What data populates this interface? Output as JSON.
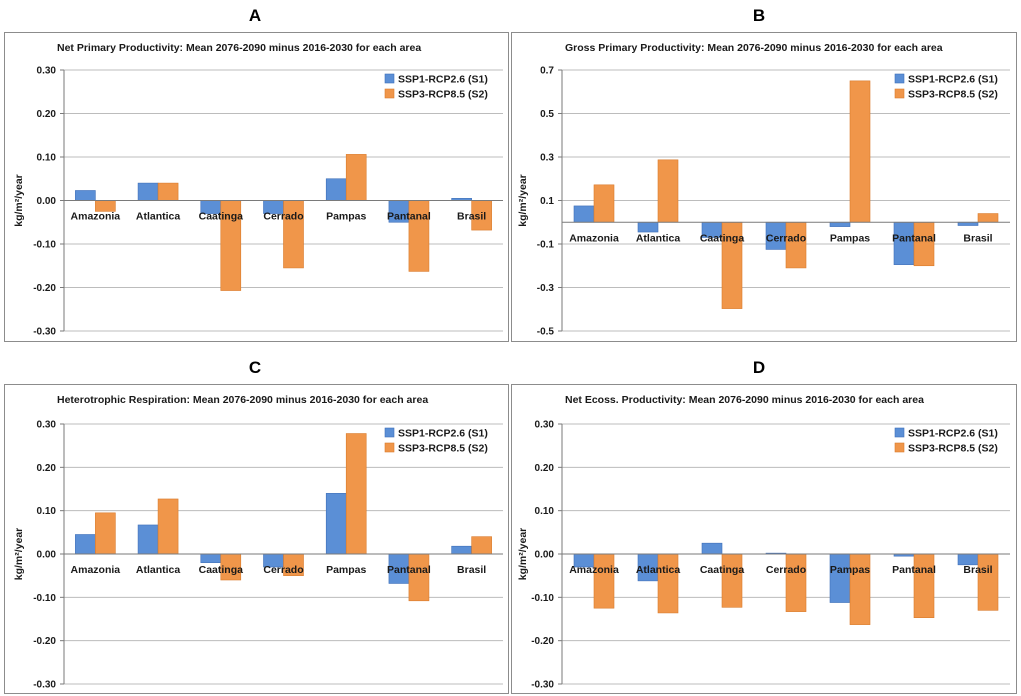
{
  "colors": {
    "s1": "#5b8fd6",
    "s1_dark": "#3f6fb8",
    "s2": "#f0964a",
    "s2_dark": "#d97b2c",
    "grid": "#bcbcbc",
    "axis": "#7a7a7a"
  },
  "legend": [
    "SSP1-RCP2.6 (S1)",
    "SSP3-RCP8.5 (S2)"
  ],
  "chart_data": [
    {
      "panel": "A",
      "type": "bar",
      "title": "Net Primary Productivity: Mean 2076-2090 minus 2016-2030 for each area",
      "ylabel": "kg/m²/year",
      "ylim": [
        -0.3,
        0.3
      ],
      "yticks": [
        0.3,
        0.2,
        0.1,
        0.0,
        -0.1,
        -0.2,
        -0.3
      ],
      "ytick_labels": [
        "0.30",
        "0.20",
        "0.10",
        "0.00",
        "-0.10",
        "-0.20",
        "-0.30"
      ],
      "categories": [
        "Amazonia",
        "Atlantica",
        "Caatinga",
        "Cerrado",
        "Pampas",
        "Pantanal",
        "Brasil"
      ],
      "series": [
        {
          "name": "SSP1-RCP2.6 (S1)",
          "values": [
            0.023,
            0.04,
            -0.03,
            -0.03,
            0.05,
            -0.05,
            0.005
          ]
        },
        {
          "name": "SSP3-RCP8.5 (S2)",
          "values": [
            -0.025,
            0.04,
            -0.207,
            -0.155,
            0.106,
            -0.163,
            -0.068
          ]
        }
      ]
    },
    {
      "panel": "B",
      "type": "bar",
      "title": "Gross Primary Productivity: Mean 2076-2090 minus 2016-2030 for each area",
      "ylabel": "kg/m²/year",
      "ylim": [
        -0.5,
        0.7
      ],
      "yticks": [
        0.7,
        0.5,
        0.3,
        0.1,
        -0.1,
        -0.3,
        -0.5
      ],
      "ytick_labels": [
        "0.7",
        "0.5",
        "0.3",
        "0.1",
        "-0.1",
        "-0.3",
        "-0.5"
      ],
      "categories": [
        "Amazonia",
        "Atlantica",
        "Caatinga",
        "Cerrado",
        "Pampas",
        "Pantanal",
        "Brasil"
      ],
      "series": [
        {
          "name": "SSP1-RCP2.6 (S1)",
          "values": [
            0.075,
            -0.045,
            -0.07,
            -0.125,
            -0.02,
            -0.195,
            -0.015
          ]
        },
        {
          "name": "SSP3-RCP8.5 (S2)",
          "values": [
            0.172,
            0.287,
            -0.397,
            -0.21,
            0.65,
            -0.2,
            0.04
          ]
        }
      ]
    },
    {
      "panel": "C",
      "type": "bar",
      "title": "Heterotrophic Respiration: Mean 2076-2090 minus 2016-2030 for each area",
      "ylabel": "kg/m²/year",
      "ylim": [
        -0.3,
        0.3
      ],
      "yticks": [
        0.3,
        0.2,
        0.1,
        0.0,
        -0.1,
        -0.2,
        -0.3
      ],
      "ytick_labels": [
        "0.30",
        "0.20",
        "0.10",
        "0.00",
        "-0.10",
        "-0.20",
        "-0.30"
      ],
      "categories": [
        "Amazonia",
        "Atlantica",
        "Caatinga",
        "Cerrado",
        "Pampas",
        "Pantanal",
        "Brasil"
      ],
      "series": [
        {
          "name": "SSP1-RCP2.6 (S1)",
          "values": [
            0.045,
            0.067,
            -0.02,
            -0.03,
            0.14,
            -0.068,
            0.018
          ]
        },
        {
          "name": "SSP3-RCP8.5 (S2)",
          "values": [
            0.095,
            0.127,
            -0.06,
            -0.05,
            0.278,
            -0.108,
            0.04
          ]
        }
      ]
    },
    {
      "panel": "D",
      "type": "bar",
      "title": "Net Ecoss. Productivity: Mean 2076-2090 minus 2016-2030 for each area",
      "ylabel": "kg/m²/year",
      "ylim": [
        -0.3,
        0.3
      ],
      "yticks": [
        0.3,
        0.2,
        0.1,
        0.0,
        -0.1,
        -0.2,
        -0.3
      ],
      "ytick_labels": [
        "0.30",
        "0.20",
        "0.10",
        "0.00",
        "-0.10",
        "-0.20",
        "-0.30"
      ],
      "categories": [
        "Amazonia",
        "Atlantica",
        "Caatinga",
        "Cerrado",
        "Pampas",
        "Pantanal",
        "Brasil"
      ],
      "series": [
        {
          "name": "SSP1-RCP2.6 (S1)",
          "values": [
            -0.03,
            -0.062,
            0.025,
            0.002,
            -0.112,
            -0.005,
            -0.025
          ]
        },
        {
          "name": "SSP3-RCP8.5 (S2)",
          "values": [
            -0.125,
            -0.136,
            -0.123,
            -0.133,
            -0.163,
            -0.147,
            -0.13
          ]
        }
      ]
    }
  ]
}
